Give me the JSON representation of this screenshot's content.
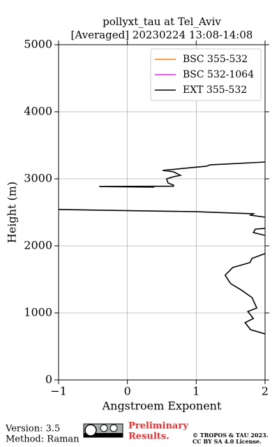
{
  "chart_data": {
    "type": "line",
    "title": "pollyxt_tau at Tel_Aviv",
    "subtitle": "[Averaged] 20230224 13:08-14:08",
    "x_label": "Angstroem Exponent",
    "y_label": "Height (m)",
    "xlim": [
      -1,
      2
    ],
    "xticks": [
      {
        "value": -1,
        "label": "−1"
      },
      0,
      1,
      2
    ],
    "ylim": [
      0,
      5000
    ],
    "yticks": [
      0,
      1000,
      2000,
      3000,
      4000,
      5000
    ],
    "grid": true,
    "legend": "upper right",
    "series": [
      {
        "name": "BSC 355-532",
        "color": "#ff7f0e",
        "x": [],
        "values": []
      },
      {
        "name": "BSC 532-1064",
        "color": "#e81ee8",
        "x": [],
        "values": []
      },
      {
        "name": "EXT 355-532",
        "color": "#000000",
        "x": [
          2.0,
          1.2,
          1.15,
          0.51,
          0.67,
          0.77,
          0.67,
          0.57,
          0.59,
          0.67,
          0.67,
          -0.41,
          0.39,
          null,
          -1.0,
          0.99,
          1.83,
          1.79,
          2.0,
          null,
          2.0,
          1.86,
          1.83,
          2.0,
          null,
          2.0,
          1.81,
          1.78,
          1.53,
          1.42,
          1.5,
          1.65,
          1.81,
          1.88,
          1.75,
          1.83,
          1.71,
          1.79,
          2.0
        ],
        "values": [
          3250,
          3208,
          3188,
          3125,
          3104,
          3052,
          3031,
          3000,
          2938,
          2906,
          2890,
          2885,
          2875,
          null,
          2542,
          2510,
          2479,
          2458,
          2427,
          null,
          2260,
          2250,
          2198,
          2156,
          null,
          1885,
          1812,
          1750,
          1677,
          1562,
          1437,
          1344,
          1229,
          1073,
          1021,
          917,
          854,
          750,
          687
        ]
      }
    ]
  },
  "footer": {
    "version": "Version: 3.5",
    "method": "Method: Raman",
    "preliminary": [
      "Preliminary",
      "Results."
    ],
    "copyright": [
      "© TROPOS & TAU 2023.",
      "CC BY SA 4.0 License."
    ]
  }
}
